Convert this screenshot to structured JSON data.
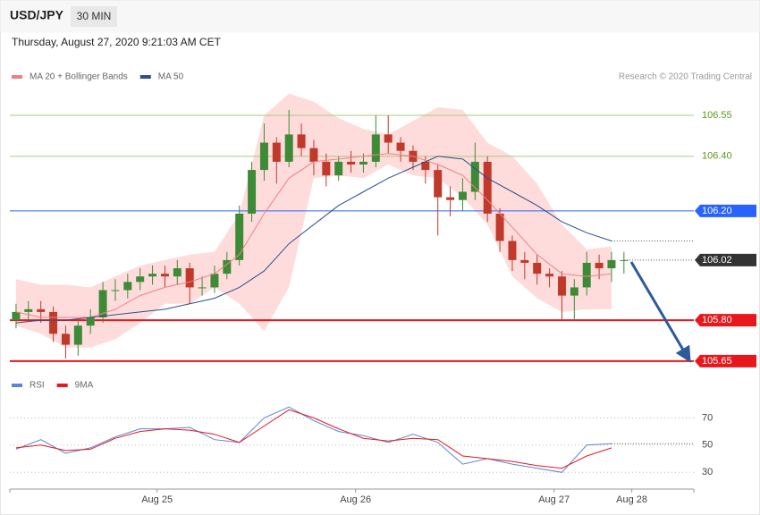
{
  "header": {
    "symbol": "USD/JPY",
    "timeframe": "30 MIN",
    "datetime": "Thursday, August 27, 2020 9:21:03 AM CET",
    "credit": "Research © 2020 Trading Central"
  },
  "chart_data": [
    {
      "type": "candlestick",
      "xlim": [
        0,
        82.7
      ],
      "ylim": [
        105.63,
        106.645
      ],
      "candles": {
        "up_color": "#3d8b37",
        "down_color": "#c0392b",
        "x": [
          0.75,
          2.25,
          3.75,
          5.25,
          6.75,
          8.25,
          9.75,
          11.25,
          12.75,
          14.25,
          15.75,
          17.25,
          18.75,
          20.25,
          21.75,
          23.25,
          24.75,
          26.25,
          27.75,
          29.25,
          30.75,
          32.25,
          33.75,
          35.25,
          36.75,
          38.25,
          39.75,
          41.25,
          42.75,
          44.25,
          45.75,
          47.25,
          48.75,
          50.25,
          51.75,
          53.25,
          54.75,
          56.25,
          57.75,
          59.25,
          60.75,
          62.25,
          63.75,
          65.25,
          66.75,
          68.25,
          69.75,
          71.25,
          72.75,
          74.25
        ],
        "open": [
          105.8,
          105.83,
          105.84,
          105.83,
          105.75,
          105.71,
          105.78,
          105.81,
          105.91,
          105.91,
          105.94,
          105.96,
          105.97,
          105.96,
          105.99,
          105.92,
          105.92,
          105.97,
          106.02,
          106.19,
          106.35,
          106.45,
          106.38,
          106.48,
          106.43,
          106.38,
          106.33,
          106.38,
          106.37,
          106.38,
          106.48,
          106.45,
          106.42,
          106.38,
          106.35,
          106.25,
          106.24,
          106.27,
          106.38,
          106.19,
          106.09,
          106.02,
          106.01,
          105.97,
          105.96,
          105.89,
          105.92,
          106.01,
          105.99,
          106.02
        ],
        "high": [
          105.86,
          105.87,
          105.87,
          105.85,
          105.78,
          105.8,
          105.84,
          105.94,
          105.95,
          105.97,
          105.99,
          106.0,
          106.0,
          106.02,
          106.01,
          105.96,
          106.0,
          106.05,
          106.22,
          106.38,
          106.52,
          106.47,
          106.57,
          106.52,
          106.46,
          106.41,
          106.4,
          106.42,
          106.41,
          106.55,
          106.55,
          106.47,
          106.44,
          106.4,
          106.37,
          106.29,
          106.32,
          106.45,
          106.4,
          106.21,
          106.11,
          106.05,
          106.04,
          105.99,
          105.98,
          105.95,
          106.05,
          106.04,
          106.05,
          106.05
        ],
        "low": [
          105.77,
          105.8,
          105.79,
          105.72,
          105.66,
          105.67,
          105.75,
          105.79,
          105.87,
          105.88,
          105.91,
          105.93,
          105.92,
          105.93,
          105.86,
          105.89,
          105.9,
          105.95,
          106.0,
          106.16,
          106.31,
          106.3,
          106.36,
          106.4,
          106.33,
          106.29,
          106.31,
          106.34,
          106.34,
          106.36,
          106.41,
          106.38,
          106.35,
          106.3,
          106.11,
          106.18,
          106.2,
          106.24,
          106.16,
          106.05,
          105.98,
          105.95,
          105.93,
          105.92,
          105.8,
          105.8,
          105.89,
          105.95,
          105.94,
          105.97
        ],
        "close": [
          105.83,
          105.84,
          105.83,
          105.75,
          105.71,
          105.78,
          105.81,
          105.91,
          105.91,
          105.94,
          105.96,
          105.97,
          105.96,
          105.99,
          105.92,
          105.92,
          105.97,
          106.02,
          106.19,
          106.35,
          106.45,
          106.38,
          106.48,
          106.43,
          106.38,
          106.33,
          106.38,
          106.37,
          106.38,
          106.48,
          106.45,
          106.42,
          106.38,
          106.35,
          106.25,
          106.24,
          106.27,
          106.38,
          106.19,
          106.09,
          106.02,
          106.01,
          105.97,
          105.96,
          105.89,
          105.92,
          106.01,
          105.99,
          106.02,
          106.02
        ]
      },
      "line_x": [
        0.75,
        3.75,
        6.75,
        9.75,
        12.75,
        15.75,
        18.75,
        21.75,
        24.75,
        27.75,
        30.75,
        33.75,
        36.75,
        39.75,
        42.75,
        45.75,
        48.75,
        51.75,
        54.75,
        57.75,
        60.75,
        63.75,
        66.75,
        69.75,
        72.75
      ],
      "series": [
        {
          "name": "MA 20 + Bollinger Bands",
          "color": "#f08080",
          "band_color": "#ffdcdc",
          "values": [
            105.83,
            105.81,
            105.81,
            105.81,
            105.84,
            105.89,
            105.92,
            105.94,
            105.97,
            106.04,
            106.19,
            106.32,
            106.38,
            106.39,
            106.4,
            106.41,
            106.4,
            106.37,
            106.33,
            106.24,
            106.14,
            106.04,
            105.97,
            105.96,
            105.97
          ],
          "upper": [
            105.95,
            105.93,
            105.93,
            105.92,
            105.96,
            106.0,
            106.02,
            106.04,
            106.05,
            106.19,
            106.55,
            106.63,
            106.6,
            106.54,
            106.5,
            106.48,
            106.53,
            106.58,
            106.57,
            106.45,
            106.4,
            106.3,
            106.15,
            106.06,
            106.07
          ],
          "lower": [
            105.78,
            105.75,
            105.7,
            105.7,
            105.73,
            105.79,
            105.86,
            105.86,
            105.92,
            105.86,
            105.76,
            105.92,
            106.32,
            106.33,
            106.32,
            106.37,
            106.33,
            106.32,
            106.25,
            106.15,
            105.96,
            105.88,
            105.83,
            105.84,
            105.84
          ]
        },
        {
          "name": "MA 50",
          "color": "#2c4f8c",
          "values": [
            105.79,
            105.8,
            105.8,
            105.81,
            105.82,
            105.83,
            105.84,
            105.86,
            105.88,
            105.92,
            105.98,
            106.08,
            106.15,
            106.22,
            106.27,
            106.32,
            106.36,
            106.4,
            106.39,
            106.32,
            106.27,
            106.22,
            106.16,
            106.12,
            106.09
          ]
        }
      ],
      "levels": [
        {
          "value": 106.55,
          "label": "106.55",
          "color": "#a6cc7a",
          "text_color": "#5a9a1a",
          "box": false,
          "line": "solid"
        },
        {
          "value": 106.4,
          "label": "106.40",
          "color": "#a6cc7a",
          "text_color": "#5a9a1a",
          "box": false,
          "line": "solid"
        },
        {
          "value": 106.2,
          "label": "106.20",
          "color": "#2962ff",
          "text_color": "#ffffff",
          "box": true,
          "line": "solid"
        },
        {
          "value": 106.02,
          "label": "106.02",
          "color": "#333333",
          "text_color": "#ffffff",
          "box": true,
          "line": "dotted"
        },
        {
          "value": 105.8,
          "label": "105.80",
          "color": "#e8171b",
          "text_color": "#ffffff",
          "box": true,
          "line": "bold"
        },
        {
          "value": 105.65,
          "label": "105.65",
          "color": "#e8171b",
          "text_color": "#ffffff",
          "box": true,
          "line": "bold"
        }
      ]
    },
    {
      "type": "line",
      "xlim": [
        0,
        82.7
      ],
      "ylim": [
        19,
        88
      ],
      "yticks": [
        30,
        50,
        70
      ],
      "x": [
        0.75,
        3.75,
        6.75,
        9.75,
        12.75,
        15.75,
        18.75,
        21.75,
        24.75,
        27.75,
        30.75,
        33.75,
        36.75,
        39.75,
        42.75,
        45.75,
        48.75,
        51.75,
        54.75,
        57.75,
        60.75,
        63.75,
        66.75,
        69.75,
        72.75
      ],
      "xticks": [
        {
          "value": 17.8,
          "label": "Aug 25"
        },
        {
          "value": 41.8,
          "label": "Aug 26"
        },
        {
          "value": 65.8,
          "label": "Aug 27"
        },
        {
          "value": 75.2,
          "label": "Aug 28"
        }
      ],
      "series": [
        {
          "name": "RSI",
          "color": "#5b84d8",
          "values": [
            47,
            54,
            44,
            48,
            56,
            62,
            62,
            63,
            54,
            52,
            70,
            78,
            68,
            60,
            57,
            52,
            58,
            52,
            36,
            40,
            36,
            33,
            30,
            50,
            51
          ]
        },
        {
          "name": "9MA",
          "color": "#e8171b",
          "values": [
            48,
            50,
            46,
            47,
            55,
            60,
            62,
            61,
            58,
            52,
            64,
            76,
            70,
            62,
            55,
            53,
            55,
            54,
            42,
            40,
            38,
            35,
            33,
            42,
            48
          ]
        }
      ]
    }
  ]
}
